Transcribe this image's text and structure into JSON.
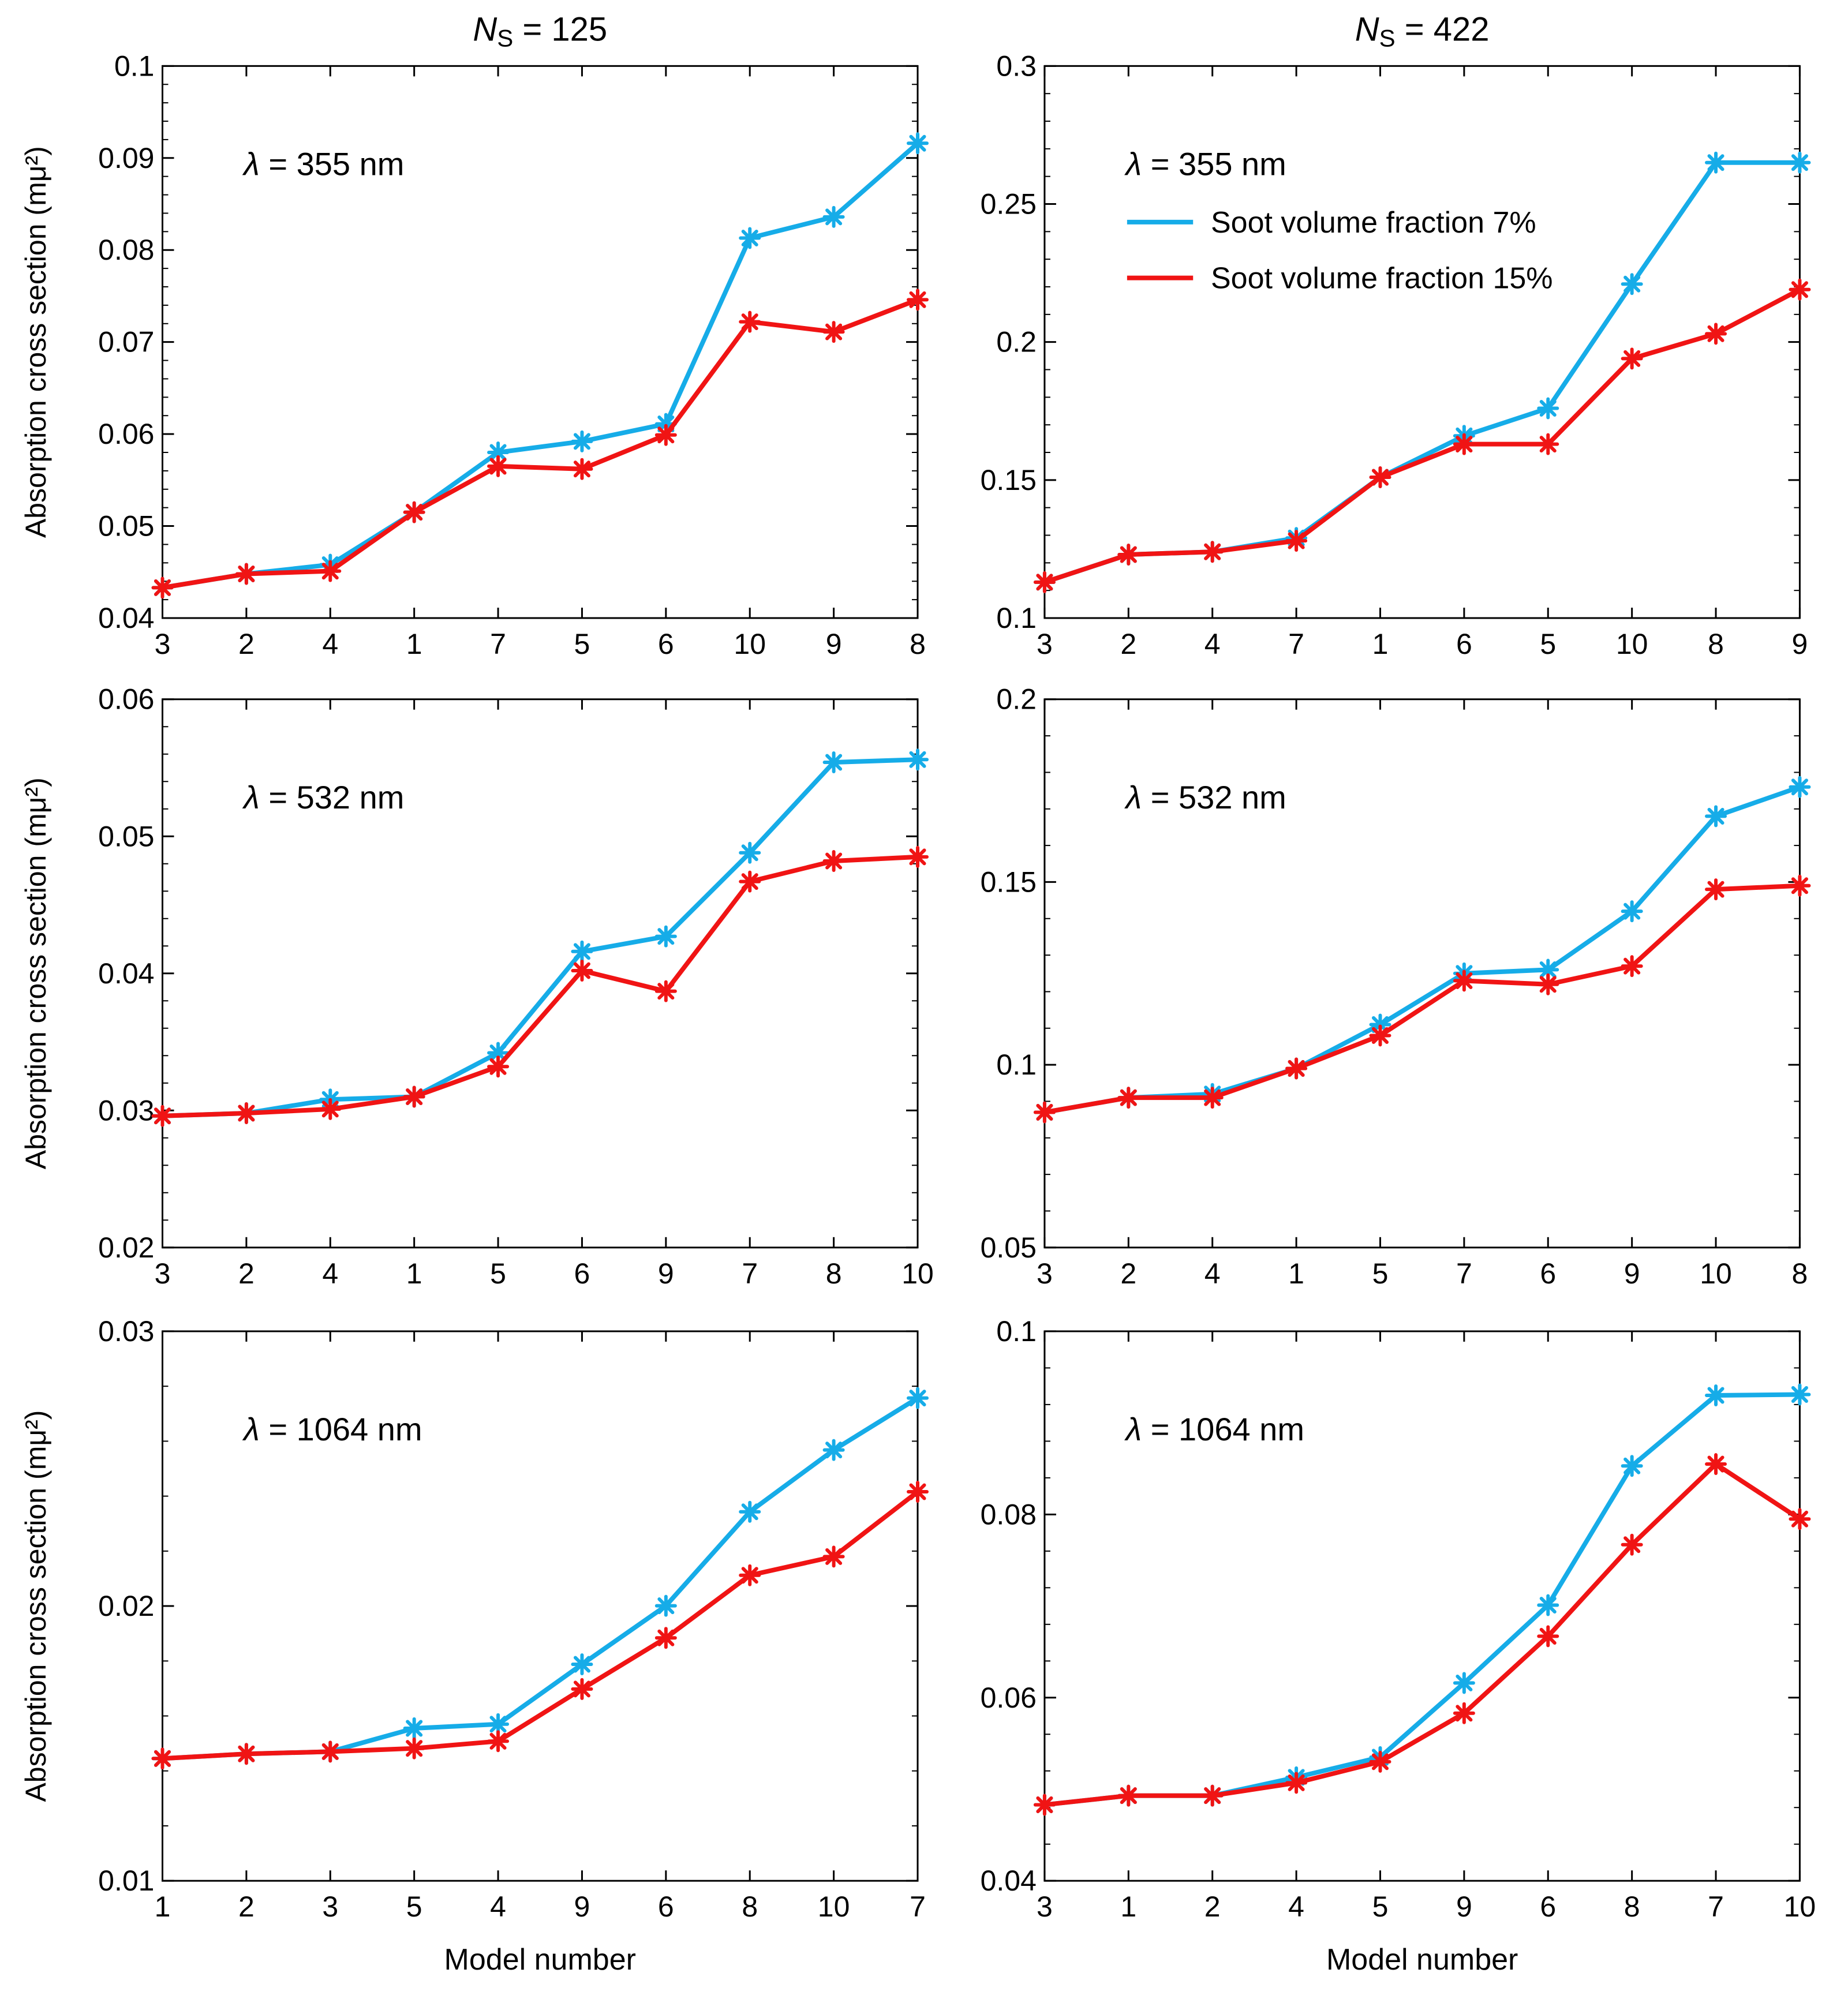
{
  "colors": {
    "series7": "#16ACE8",
    "series15": "#F01414"
  },
  "legend": [
    "Soot volume fraction 7%",
    "Soot volume fraction 15%"
  ],
  "columns": [
    {
      "label": "N",
      "sub": "S",
      "value": "= 125"
    },
    {
      "label": "N",
      "sub": "S",
      "value": "= 422"
    }
  ],
  "chart_data": [
    {
      "type": "line",
      "row": 0,
      "col": 0,
      "annotation_symbol": "λ",
      "annotation_text": "= 355 nm",
      "ylabel": "Absorption cross section (mμ²)",
      "xlabel": "",
      "ylim": [
        0.04,
        0.1
      ],
      "yticks": [
        "0.04",
        "0.05",
        "0.06",
        "0.07",
        "0.08",
        "0.09",
        "0.1"
      ],
      "categories": [
        "3",
        "2",
        "4",
        "1",
        "7",
        "5",
        "6",
        "10",
        "9",
        "8"
      ],
      "series": [
        {
          "name": "Soot volume fraction 7%",
          "values": [
            0.0433,
            0.0448,
            0.0458,
            0.0515,
            0.058,
            0.0592,
            0.0611,
            0.0813,
            0.0836,
            0.0916
          ]
        },
        {
          "name": "Soot volume fraction 15%",
          "values": [
            0.0433,
            0.0448,
            0.0451,
            0.0515,
            0.0565,
            0.0562,
            0.0599,
            0.0722,
            0.0711,
            0.0746
          ]
        }
      ]
    },
    {
      "type": "line",
      "row": 0,
      "col": 1,
      "annotation_symbol": "λ",
      "annotation_text": "= 355 nm",
      "ylabel": "",
      "xlabel": "",
      "ylim": [
        0.1,
        0.3
      ],
      "yticks": [
        "0.1",
        "0.15",
        "0.2",
        "0.25",
        "0.3"
      ],
      "categories": [
        "3",
        "2",
        "4",
        "7",
        "1",
        "6",
        "5",
        "10",
        "8",
        "9"
      ],
      "series": [
        {
          "name": "Soot volume fraction 7%",
          "values": [
            0.113,
            0.123,
            0.124,
            0.129,
            0.151,
            0.166,
            0.176,
            0.221,
            0.265,
            0.265
          ]
        },
        {
          "name": "Soot volume fraction 15%",
          "values": [
            0.113,
            0.123,
            0.124,
            0.128,
            0.151,
            0.163,
            0.163,
            0.194,
            0.203,
            0.219
          ]
        }
      ]
    },
    {
      "type": "line",
      "row": 1,
      "col": 0,
      "annotation_symbol": "λ",
      "annotation_text": "= 532 nm",
      "ylabel": "Absorption cross section (mμ²)",
      "xlabel": "",
      "ylim": [
        0.02,
        0.06
      ],
      "yticks": [
        "0.02",
        "0.03",
        "0.04",
        "0.05",
        "0.06"
      ],
      "categories": [
        "3",
        "2",
        "4",
        "1",
        "5",
        "6",
        "9",
        "7",
        "8",
        "10"
      ],
      "series": [
        {
          "name": "Soot volume fraction 7%",
          "values": [
            0.0296,
            0.0298,
            0.0308,
            0.031,
            0.0342,
            0.0416,
            0.0427,
            0.0488,
            0.0554,
            0.0556
          ]
        },
        {
          "name": "Soot volume fraction 15%",
          "values": [
            0.0296,
            0.0298,
            0.0301,
            0.031,
            0.0332,
            0.0402,
            0.0387,
            0.0467,
            0.0482,
            0.0485
          ]
        }
      ]
    },
    {
      "type": "line",
      "row": 1,
      "col": 1,
      "annotation_symbol": "λ",
      "annotation_text": "= 532 nm",
      "ylabel": "",
      "xlabel": "",
      "ylim": [
        0.05,
        0.2
      ],
      "yticks": [
        "0.05",
        "0.1",
        "0.15",
        "0.2"
      ],
      "categories": [
        "3",
        "2",
        "4",
        "1",
        "5",
        "7",
        "6",
        "9",
        "10",
        "8"
      ],
      "series": [
        {
          "name": "Soot volume fraction 7%",
          "values": [
            0.087,
            0.091,
            0.092,
            0.099,
            0.111,
            0.125,
            0.126,
            0.142,
            0.168,
            0.176
          ]
        },
        {
          "name": "Soot volume fraction 15%",
          "values": [
            0.087,
            0.091,
            0.091,
            0.099,
            0.108,
            0.123,
            0.122,
            0.127,
            0.148,
            0.149
          ]
        }
      ]
    },
    {
      "type": "line",
      "row": 2,
      "col": 0,
      "annotation_symbol": "λ",
      "annotation_text": "= 1064 nm",
      "ylabel": "Absorption cross section (mμ²)",
      "xlabel": "Model number",
      "ylim": [
        0.01,
        0.03
      ],
      "yticks": [
        "0.01",
        "0.02",
        "0.03"
      ],
      "categories": [
        "1",
        "2",
        "3",
        "5",
        "4",
        "9",
        "6",
        "8",
        "10",
        "7"
      ],
      "series": [
        {
          "name": "Soot volume fraction 7%",
          "values": [
            0.01445,
            0.01462,
            0.0147,
            0.01555,
            0.0157,
            0.01788,
            0.02001,
            0.02343,
            0.02568,
            0.02757
          ]
        },
        {
          "name": "Soot volume fraction 15%",
          "values": [
            0.01445,
            0.01462,
            0.0147,
            0.01482,
            0.01508,
            0.01698,
            0.01884,
            0.02112,
            0.0218,
            0.02416
          ]
        }
      ]
    },
    {
      "type": "line",
      "row": 2,
      "col": 1,
      "annotation_symbol": "λ",
      "annotation_text": "= 1064 nm",
      "ylabel": "",
      "xlabel": "Model number",
      "ylim": [
        0.04,
        0.1
      ],
      "yticks": [
        "0.04",
        "0.06",
        "0.08",
        "0.1"
      ],
      "categories": [
        "3",
        "1",
        "2",
        "4",
        "5",
        "9",
        "6",
        "8",
        "7",
        "10"
      ],
      "series": [
        {
          "name": "Soot volume fraction 7%",
          "values": [
            0.0483,
            0.0493,
            0.0493,
            0.0513,
            0.0535,
            0.0616,
            0.0701,
            0.0853,
            0.093,
            0.0931
          ]
        },
        {
          "name": "Soot volume fraction 15%",
          "values": [
            0.0483,
            0.0493,
            0.0493,
            0.0507,
            0.053,
            0.0583,
            0.0667,
            0.0767,
            0.0855,
            0.0795
          ]
        }
      ]
    }
  ]
}
